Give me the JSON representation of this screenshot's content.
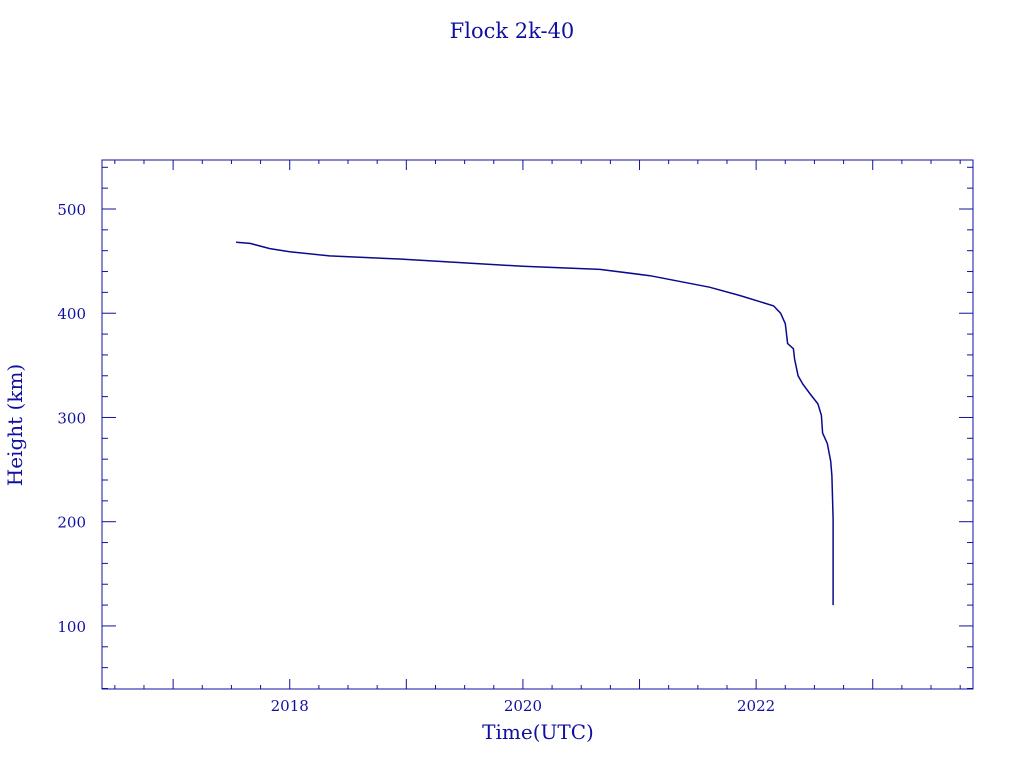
{
  "chart_data": {
    "type": "line",
    "title": "Flock 2k-40",
    "xlabel": "Time(UTC)",
    "ylabel": "Height (km)",
    "xlim": [
      2016.39,
      2023.86
    ],
    "ylim": [
      39.5,
      547
    ],
    "xticks": [
      2018,
      2020,
      2022
    ],
    "xtick_labels": [
      "2018",
      "2020",
      "2022"
    ],
    "yticks": [
      100,
      200,
      300,
      400,
      500
    ],
    "ytick_labels": [
      "100",
      "200",
      "300",
      "400",
      "500"
    ],
    "grid": false,
    "color": "#0a0a8c",
    "series": [
      {
        "name": "Flock 2k-40",
        "x": [
          2017.54,
          2017.66,
          2017.83,
          2018.0,
          2018.34,
          2018.94,
          2020.0,
          2020.66,
          2021.09,
          2021.6,
          2021.86,
          2022.15,
          2022.21,
          2022.25,
          2022.27,
          2022.32,
          2022.33,
          2022.36,
          2022.4,
          2022.46,
          2022.53,
          2022.56,
          2022.57,
          2022.61,
          2022.64,
          2022.65,
          2022.66,
          2022.66
        ],
        "y": [
          468,
          467,
          462,
          459,
          455,
          452,
          445,
          442,
          436,
          425,
          417,
          407,
          400,
          390,
          371,
          366,
          356,
          340,
          332,
          323,
          313,
          302,
          285,
          275,
          258,
          244,
          203,
          120
        ]
      }
    ]
  }
}
